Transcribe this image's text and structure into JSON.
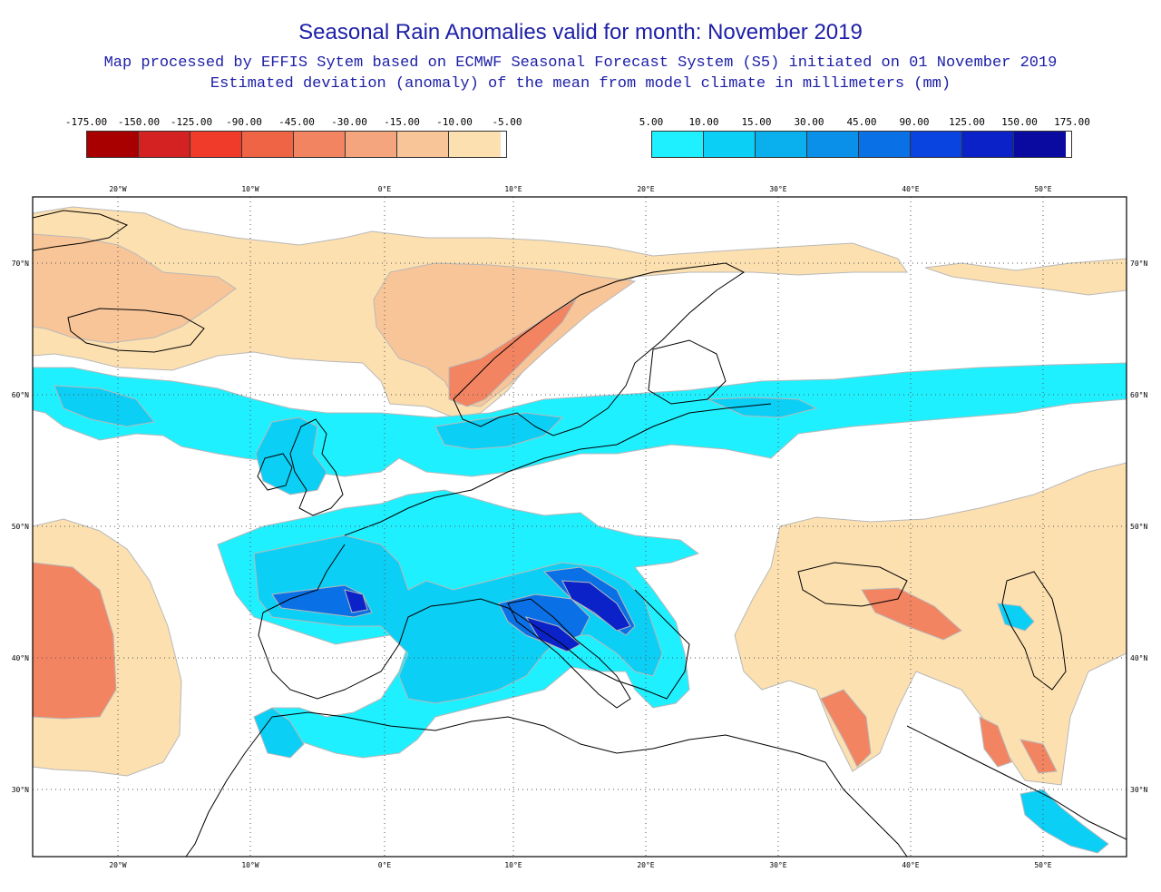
{
  "header": {
    "title": "Seasonal Rain Anomalies valid for month: November 2019",
    "subtitle1": "Map processed by EFFIS Sytem based on ECMWF Seasonal Forecast System (S5) initiated on 01 November 2019",
    "subtitle2": "Estimated deviation (anomaly) of the mean from model climate in millimeters (mm)"
  },
  "legend_negative": {
    "labels": [
      "-175.00",
      "-150.00",
      "-125.00",
      "-90.00",
      "-45.00",
      "-30.00",
      "-15.00",
      "-10.00",
      "-5.00"
    ],
    "colors": [
      "#a80000",
      "#d42222",
      "#f03a2a",
      "#f06446",
      "#f28462",
      "#f5a57e",
      "#f8c598",
      "#fde0b0"
    ]
  },
  "legend_positive": {
    "labels": [
      "5.00",
      "10.00",
      "15.00",
      "30.00",
      "45.00",
      "90.00",
      "125.00",
      "150.00",
      "175.00"
    ],
    "colors": [
      "#1ff0ff",
      "#0ccff5",
      "#0aafee",
      "#0a90e8",
      "#0a70e6",
      "#0a44e0",
      "#0a22c8",
      "#0a0aa0"
    ]
  },
  "map": {
    "lon_labels": [
      "20°W",
      "10°W",
      "0°E",
      "10°E",
      "20°E",
      "30°E",
      "40°E",
      "50°E"
    ],
    "lat_labels": [
      "70°N",
      "60°N",
      "50°N",
      "40°N",
      "30°N"
    ],
    "colors": {
      "coast": "#000000",
      "grid": "#555555",
      "dry_light": "#fde0b0",
      "dry_mid": "#f8c598",
      "dry_strong": "#f28462",
      "dry_core": "#f06446",
      "wet_light": "#1ff0ff",
      "wet_mid": "#0ccff5",
      "wet_strong": "#0aafee",
      "wet_deep": "#0a70e6",
      "wet_core": "#0a22c8",
      "halo": "#b8b8b8"
    }
  }
}
